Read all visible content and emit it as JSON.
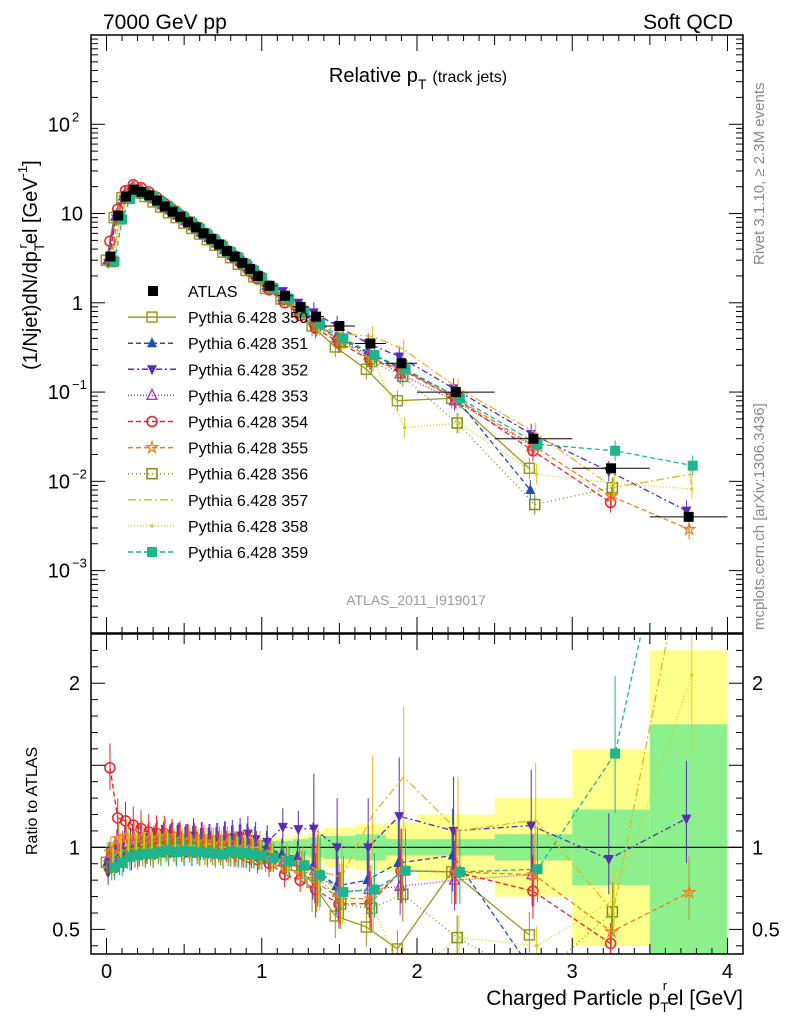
{
  "header": {
    "left": "7000 GeV pp",
    "right": "Soft QCD"
  },
  "side": {
    "rivet": "Rivet 3.1.10, ≥ 2.3M events",
    "mcplots": "mcplots.cern.ch [arXiv:1306.3436]"
  },
  "chart_data": [
    {
      "type": "scatter",
      "title_main": "Relative p",
      "title_sub": "T",
      "title_paren": "(track jets)",
      "analysis_label": "ATLAS_2011_I919017",
      "ylabel": "(1/Njet)dN/dp",
      "ylabel_sup": "r",
      "ylabel_sub": "T",
      "ylabel_tail": "el [GeV",
      "ylabel_unit_sup": "-1",
      "ylabel_end": "]",
      "yscale": "log",
      "xlim": [
        -0.1,
        4.1
      ],
      "ylim": [
        0.0002,
        1000
      ],
      "yticklabels": [
        {
          "v": 0.001,
          "base": "10",
          "exp": "−3"
        },
        {
          "v": 0.01,
          "base": "10",
          "exp": "−2"
        },
        {
          "v": 0.1,
          "base": "10",
          "exp": "−1"
        },
        {
          "v": 1,
          "base": "1",
          "exp": ""
        },
        {
          "v": 10,
          "base": "10",
          "exp": ""
        },
        {
          "v": 100,
          "base": "10",
          "exp": "2"
        }
      ],
      "legend_position": "center-left",
      "data": {
        "name": "ATLAS",
        "x": [
          0.025,
          0.075,
          0.125,
          0.175,
          0.225,
          0.275,
          0.325,
          0.375,
          0.425,
          0.475,
          0.525,
          0.575,
          0.625,
          0.675,
          0.725,
          0.775,
          0.825,
          0.875,
          0.925,
          0.975,
          1.05,
          1.15,
          1.25,
          1.35,
          1.5,
          1.7,
          1.9,
          2.25,
          2.75,
          3.25,
          3.75
        ],
        "y": [
          3.3,
          9.5,
          15.5,
          18.5,
          17.5,
          16.0,
          14.0,
          12.0,
          10.5,
          9.2,
          8.0,
          7.0,
          6.0,
          5.2,
          4.5,
          3.8,
          3.3,
          2.8,
          2.4,
          2.0,
          1.55,
          1.2,
          0.9,
          0.7,
          0.55,
          0.35,
          0.21,
          0.1,
          0.03,
          0.014,
          0.004
        ]
      },
      "series": [
        {
          "name": "Pythia 6.428 350",
          "color": "#9a9a1e",
          "marker": "square-open",
          "dash": "",
          "y": [
            3.0,
            9.0,
            15.0,
            18.0,
            17.0,
            15.5,
            13.5,
            11.8,
            10.2,
            9.0,
            7.8,
            6.8,
            5.9,
            5.1,
            4.4,
            3.7,
            3.2,
            2.7,
            2.3,
            1.95,
            1.45,
            1.1,
            0.8,
            0.55,
            0.32,
            0.18,
            0.08,
            0.085,
            0.014,
            null,
            null
          ]
        },
        {
          "name": "Pythia 6.428 351",
          "color": "#1f4fb5",
          "marker": "triangle-up",
          "dash": "5,3",
          "y": [
            3.0,
            9.2,
            15.5,
            18.8,
            17.8,
            16.2,
            14.4,
            12.4,
            10.8,
            9.5,
            8.2,
            7.2,
            6.1,
            5.3,
            4.6,
            3.9,
            3.4,
            2.9,
            2.5,
            2.05,
            1.55,
            1.15,
            0.85,
            0.62,
            0.42,
            0.28,
            0.19,
            0.095,
            0.008,
            null,
            null
          ]
        },
        {
          "name": "Pythia 6.428 352",
          "color": "#5a2bb5",
          "marker": "triangle-down",
          "dash": "6,3,2,3",
          "y": [
            2.8,
            8.8,
            14.5,
            17.5,
            17.0,
            15.8,
            14.2,
            12.4,
            10.9,
            9.6,
            8.3,
            7.5,
            6.3,
            5.4,
            4.7,
            4.0,
            3.5,
            3.0,
            2.6,
            2.1,
            1.6,
            1.35,
            1.0,
            0.78,
            0.55,
            0.35,
            0.25,
            0.11,
            0.034,
            0.013,
            0.0047
          ]
        },
        {
          "name": "Pythia 6.428 353",
          "color": "#b02fb0",
          "marker": "triangle-up-open",
          "dash": "1,2",
          "y": [
            3.1,
            9.6,
            16.0,
            19.2,
            18.2,
            16.6,
            14.6,
            12.6,
            11.0,
            9.6,
            8.3,
            7.3,
            6.3,
            5.4,
            4.7,
            4.0,
            3.4,
            2.9,
            2.45,
            2.0,
            1.5,
            1.1,
            0.82,
            0.6,
            0.4,
            0.26,
            0.16,
            0.08,
            0.025,
            null,
            null
          ]
        },
        {
          "name": "Pythia 6.428 354",
          "color": "#e8202a",
          "marker": "circle-open",
          "dash": "5,3",
          "y": [
            4.9,
            11.2,
            18.0,
            21.0,
            19.5,
            17.5,
            15.2,
            13.0,
            11.2,
            9.7,
            8.3,
            7.2,
            6.1,
            5.2,
            4.5,
            3.8,
            3.2,
            2.7,
            2.25,
            1.85,
            1.4,
            1.0,
            0.72,
            0.52,
            0.36,
            0.23,
            0.18,
            0.085,
            0.022,
            0.0058,
            null
          ]
        },
        {
          "name": "Pythia 6.428 355",
          "color": "#f07a1f",
          "marker": "star-open",
          "dash": "5,3",
          "y": [
            3.2,
            10.0,
            16.5,
            19.5,
            18.5,
            16.8,
            14.8,
            12.8,
            11.0,
            9.6,
            8.3,
            7.2,
            6.2,
            5.3,
            4.6,
            3.9,
            3.3,
            2.8,
            2.35,
            1.9,
            1.45,
            1.05,
            0.75,
            0.55,
            0.38,
            0.24,
            0.18,
            0.085,
            0.025,
            0.0068,
            0.0029
          ]
        },
        {
          "name": "Pythia 6.428 356",
          "color": "#7d8c12",
          "marker": "square-open",
          "dash": "1,3",
          "y": [
            2.9,
            8.7,
            14.8,
            17.8,
            17.0,
            15.6,
            13.8,
            12.0,
            10.5,
            9.2,
            8.0,
            6.9,
            5.9,
            5.1,
            4.4,
            3.7,
            3.2,
            2.7,
            2.3,
            1.9,
            1.45,
            1.1,
            0.8,
            0.58,
            0.36,
            0.22,
            0.15,
            0.045,
            0.0055,
            0.0085,
            null
          ]
        },
        {
          "name": "Pythia 6.428 357",
          "color": "#e8b51e",
          "marker": "none",
          "dash": "8,3,2,3",
          "y": [
            3.1,
            9.4,
            15.8,
            18.8,
            17.8,
            16.2,
            14.2,
            12.2,
            10.6,
            9.3,
            8.1,
            7.1,
            6.1,
            5.3,
            4.5,
            3.8,
            3.3,
            2.8,
            2.4,
            2.0,
            1.5,
            1.12,
            0.82,
            0.6,
            0.45,
            0.42,
            0.3,
            0.11,
            0.035,
            0.0085,
            0.012
          ]
        },
        {
          "name": "Pythia 6.428 358",
          "color": "#d2d41e",
          "marker": "dot",
          "dash": "1,2",
          "y": [
            3.0,
            9.2,
            15.4,
            18.4,
            17.4,
            15.9,
            14.0,
            12.0,
            10.4,
            9.1,
            7.9,
            6.9,
            5.9,
            5.1,
            4.4,
            3.7,
            3.2,
            2.7,
            2.3,
            1.9,
            1.45,
            1.08,
            0.78,
            0.56,
            0.38,
            0.22,
            0.04,
            0.045,
            0.012,
            0.0095,
            0.0082
          ]
        },
        {
          "name": "Pythia 6.428 359",
          "color": "#1eb48c",
          "marker": "square",
          "dash": "5,3",
          "y": [
            2.9,
            8.6,
            14.6,
            17.6,
            16.8,
            15.4,
            13.6,
            11.8,
            10.2,
            9.0,
            7.8,
            6.8,
            5.8,
            5.0,
            4.3,
            3.7,
            3.2,
            2.7,
            2.3,
            1.9,
            1.45,
            1.1,
            0.8,
            0.58,
            0.4,
            0.26,
            0.18,
            0.085,
            0.026,
            0.022,
            0.015
          ]
        }
      ]
    },
    {
      "type": "line",
      "ylabel": "Ratio to ATLAS",
      "xlabel": "Charged Particle p",
      "xlabel_sub": "T",
      "xlabel_sup": "r",
      "xlabel_tail": "el [GeV]",
      "xlim": [
        -0.1,
        4.1
      ],
      "ylim": [
        0.35,
        2.3
      ],
      "xticks": [
        0,
        1,
        2,
        3,
        4
      ],
      "yticks": [
        0.5,
        1,
        2
      ],
      "uncertainty_bands": {
        "x_edges": [
          0,
          0.05,
          0.1,
          0.15,
          0.2,
          0.25,
          0.3,
          0.35,
          0.4,
          0.45,
          0.5,
          0.55,
          0.6,
          0.65,
          0.7,
          0.75,
          0.8,
          0.85,
          0.9,
          0.95,
          1.0,
          1.1,
          1.2,
          1.3,
          1.4,
          1.6,
          1.8,
          2.0,
          2.5,
          3.0,
          3.5,
          4.0
        ],
        "stat_half": [
          0.03,
          0.03,
          0.03,
          0.03,
          0.03,
          0.03,
          0.03,
          0.03,
          0.03,
          0.03,
          0.03,
          0.03,
          0.03,
          0.03,
          0.03,
          0.03,
          0.03,
          0.03,
          0.03,
          0.03,
          0.04,
          0.04,
          0.05,
          0.06,
          0.07,
          0.08,
          0.05,
          0.05,
          0.08,
          0.23,
          0.75
        ],
        "total_half": [
          0.04,
          0.04,
          0.04,
          0.04,
          0.04,
          0.04,
          0.04,
          0.04,
          0.04,
          0.04,
          0.04,
          0.04,
          0.04,
          0.05,
          0.05,
          0.05,
          0.05,
          0.05,
          0.05,
          0.05,
          0.06,
          0.06,
          0.07,
          0.09,
          0.12,
          0.14,
          0.15,
          0.2,
          0.3,
          0.6,
          1.2
        ]
      }
    }
  ]
}
